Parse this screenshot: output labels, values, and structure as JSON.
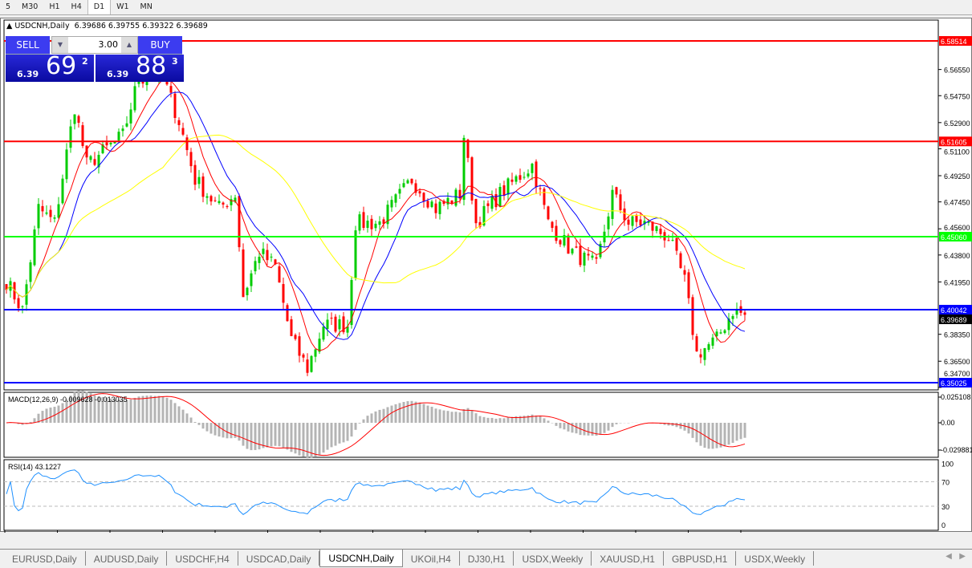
{
  "timeframes": [
    "5",
    "M30",
    "H1",
    "H4",
    "D1",
    "W1",
    "MN"
  ],
  "active_timeframe": "D1",
  "chart": {
    "symbol_line": "USDCNH,Daily",
    "ohlc": "6.39686 6.39755 6.39322 6.39689"
  },
  "trade": {
    "sell_label": "SELL",
    "buy_label": "BUY",
    "lot": "3.00",
    "sell": {
      "small": "6.39",
      "main": "69",
      "exp": "2"
    },
    "buy": {
      "small": "6.39",
      "main": "88",
      "exp": "3"
    }
  },
  "price_axis": [
    "6.56550",
    "6.54750",
    "6.52900",
    "6.51100",
    "6.49250",
    "6.47450",
    "6.45600",
    "6.43800",
    "6.41950",
    "6.38350",
    "6.36500",
    "6.34700"
  ],
  "hlines": [
    {
      "price": 6.58514,
      "label": "6.58514",
      "color": "#ff0000"
    },
    {
      "price": 6.51605,
      "label": "6.51605",
      "color": "#ff0000"
    },
    {
      "price": 6.4506,
      "label": "6.45060",
      "color": "#00ff00"
    },
    {
      "price": 6.40042,
      "label": "6.40042",
      "color": "#0000ff"
    },
    {
      "price": 6.35025,
      "label": "6.35025",
      "color": "#0000ff"
    }
  ],
  "current_price": "6.39689",
  "macd": {
    "label": "MACD(12,26,9) -0.009628 -0.013035",
    "axis": [
      "0.025108",
      "0.00",
      "-0.029881"
    ]
  },
  "rsi": {
    "label": "RSI(14) 43.1227",
    "axis": [
      "100",
      "70",
      "30",
      "0"
    ]
  },
  "dates": [
    "11 Feb 2021",
    "2 Mar 2021",
    "20 Mar 2021",
    "8 Apr 2021",
    "27 Apr 2021",
    "15 May 2021",
    "3 Jun 2021",
    "22 Jun 2021",
    "10 Jul 2021",
    "29 Jul 2021",
    "17 Aug 2021",
    "4 Sep 2021",
    "23 Sep 2021",
    "12 Oct 2021",
    "30 Oct 2021"
  ],
  "price_path": [
    [
      0,
      6.42
    ],
    [
      4,
      6.4
    ],
    [
      8,
      6.47
    ],
    [
      12,
      6.46
    ],
    [
      17,
      6.54
    ],
    [
      20,
      6.5
    ],
    [
      29,
      6.52
    ],
    [
      33,
      6.56
    ],
    [
      39,
      6.56
    ],
    [
      43,
      6.53
    ],
    [
      47,
      6.49
    ],
    [
      53,
      6.47
    ],
    [
      57,
      6.48
    ],
    [
      59,
      6.41
    ],
    [
      63,
      6.44
    ],
    [
      67,
      6.43
    ],
    [
      71,
      6.38
    ],
    [
      75,
      6.36
    ],
    [
      79,
      6.39
    ],
    [
      85,
      6.39
    ],
    [
      87,
      6.46
    ],
    [
      93,
      6.46
    ],
    [
      101,
      6.49
    ],
    [
      107,
      6.47
    ],
    [
      113,
      6.48
    ],
    [
      114,
      6.52
    ],
    [
      117,
      6.46
    ],
    [
      123,
      6.48
    ],
    [
      131,
      6.5
    ],
    [
      135,
      6.46
    ],
    [
      141,
      6.44
    ],
    [
      147,
      6.43
    ],
    [
      151,
      6.48
    ],
    [
      155,
      6.46
    ],
    [
      159,
      6.46
    ],
    [
      165,
      6.45
    ],
    [
      169,
      6.42
    ],
    [
      172,
      6.37
    ],
    [
      177,
      6.38
    ],
    [
      181,
      6.4
    ],
    [
      184,
      6.397
    ]
  ],
  "colors": {
    "bull": "#00cc00",
    "bear": "#ff0000",
    "ma_fast": "#ff0000",
    "ma_mid": "#0000ff",
    "ma_slow": "#ffff00",
    "rsi": "#1e90ff",
    "hist": "#b4b4b4"
  },
  "tabs": [
    "EURUSD,Daily",
    "AUDUSD,Daily",
    "USDCHF,H4",
    "USDCAD,Daily",
    "USDCNH,Daily",
    "UKOil,H4",
    "DJ30,H1",
    "USDX,Weekly",
    "XAUUSD,H1",
    "GBPUSD,H1",
    "USDX,Weekly"
  ],
  "active_tab": 4
}
